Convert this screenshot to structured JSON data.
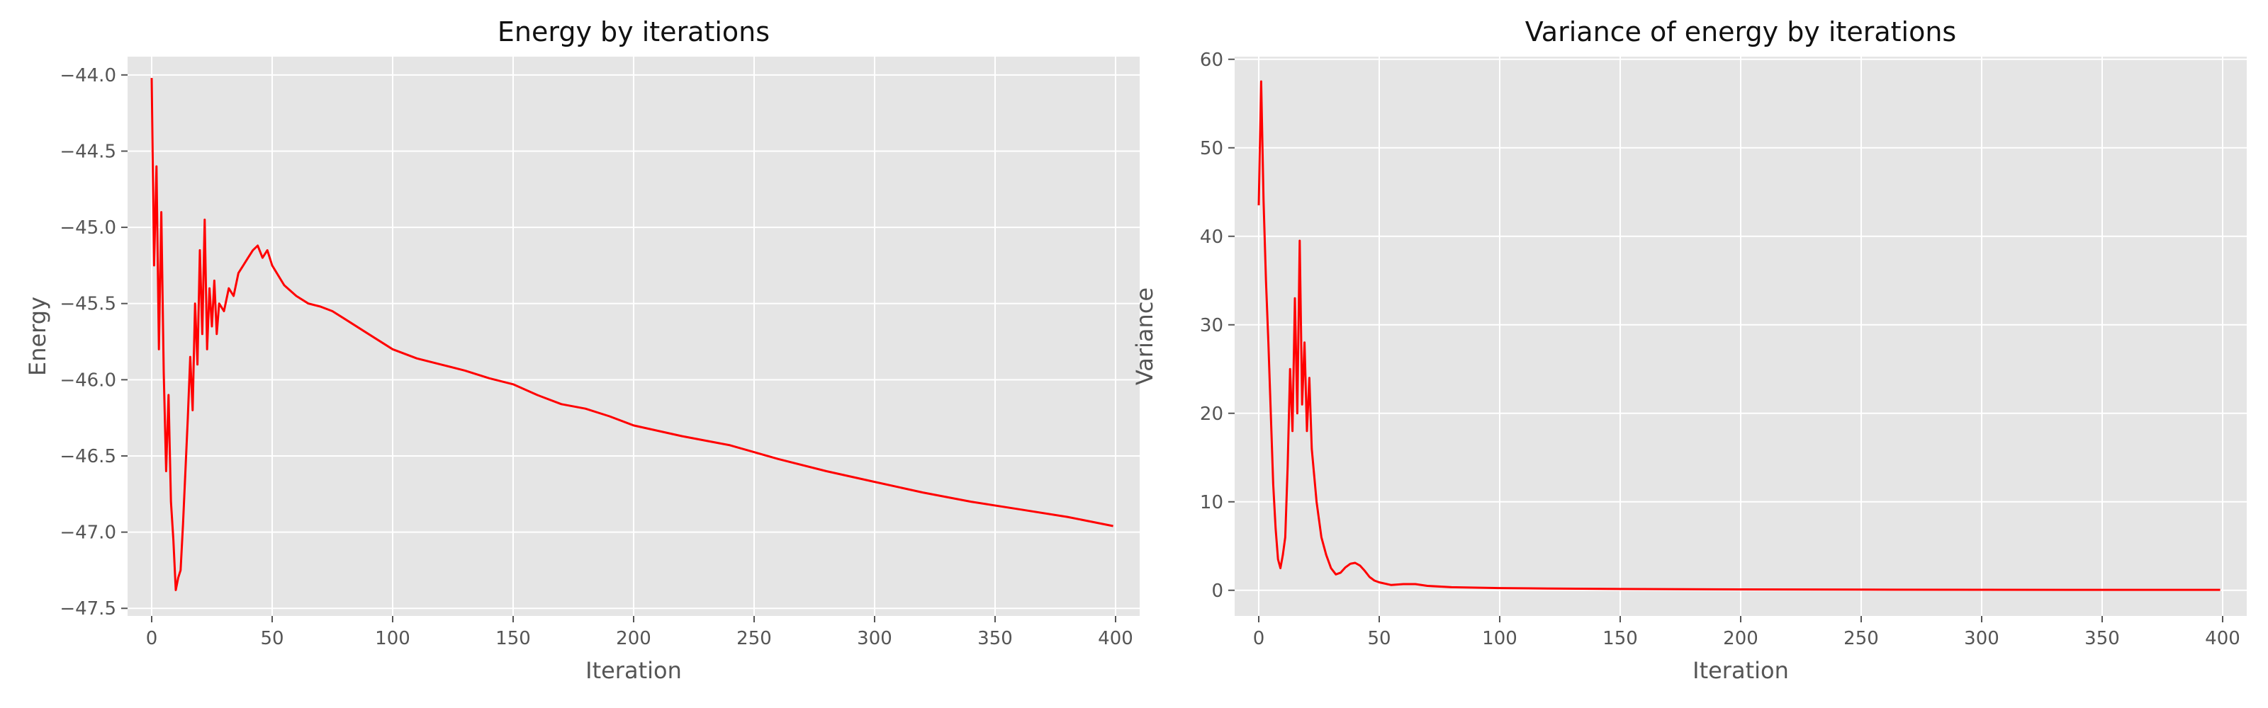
{
  "chart_data": [
    {
      "type": "line",
      "title": "Energy by iterations",
      "xlabel": "Iteration",
      "ylabel": "Energy",
      "xlim": [
        -10,
        410
      ],
      "ylim": [
        -47.55,
        -43.88
      ],
      "xticks": [
        0,
        50,
        100,
        150,
        200,
        250,
        300,
        350,
        400
      ],
      "xtick_labels": [
        "0",
        "50",
        "100",
        "150",
        "200",
        "250",
        "300",
        "350",
        "400"
      ],
      "yticks": [
        -47.5,
        -47.0,
        -46.5,
        -46.0,
        -45.5,
        -45.0,
        -44.5,
        -44.0
      ],
      "ytick_labels": [
        "−47.5",
        "−47.0",
        "−46.5",
        "−46.0",
        "−45.5",
        "−45.0",
        "−44.5",
        "−44.0"
      ],
      "grid": true,
      "series": [
        {
          "color": "#ff0000",
          "x": [
            0,
            1,
            2,
            3,
            4,
            5,
            6,
            7,
            8,
            9,
            10,
            11,
            12,
            13,
            14,
            15,
            16,
            17,
            18,
            19,
            20,
            21,
            22,
            23,
            24,
            25,
            26,
            27,
            28,
            30,
            32,
            34,
            36,
            38,
            40,
            42,
            44,
            46,
            48,
            50,
            55,
            60,
            65,
            70,
            75,
            80,
            90,
            100,
            110,
            120,
            130,
            140,
            150,
            160,
            170,
            180,
            190,
            200,
            220,
            240,
            260,
            280,
            300,
            320,
            340,
            360,
            380,
            399
          ],
          "y": [
            -44.02,
            -45.25,
            -44.6,
            -45.8,
            -44.9,
            -45.95,
            -46.6,
            -46.1,
            -46.8,
            -47.05,
            -47.38,
            -47.3,
            -47.25,
            -46.95,
            -46.6,
            -46.25,
            -45.85,
            -46.2,
            -45.5,
            -45.9,
            -45.15,
            -45.7,
            -44.95,
            -45.8,
            -45.4,
            -45.65,
            -45.35,
            -45.7,
            -45.5,
            -45.55,
            -45.4,
            -45.45,
            -45.3,
            -45.25,
            -45.2,
            -45.15,
            -45.12,
            -45.2,
            -45.15,
            -45.25,
            -45.38,
            -45.45,
            -45.5,
            -45.52,
            -45.55,
            -45.6,
            -45.7,
            -45.8,
            -45.86,
            -45.9,
            -45.94,
            -45.99,
            -46.03,
            -46.1,
            -46.16,
            -46.19,
            -46.24,
            -46.3,
            -46.37,
            -46.43,
            -46.52,
            -46.6,
            -46.67,
            -46.74,
            -46.8,
            -46.85,
            -46.9,
            -46.96
          ]
        }
      ]
    },
    {
      "type": "line",
      "title": "Variance of energy by iterations",
      "xlabel": "Iteration",
      "ylabel": "Variance",
      "xlim": [
        -10,
        410
      ],
      "ylim": [
        -2.9,
        60.3
      ],
      "xticks": [
        0,
        50,
        100,
        150,
        200,
        250,
        300,
        350,
        400
      ],
      "xtick_labels": [
        "0",
        "50",
        "100",
        "150",
        "200",
        "250",
        "300",
        "350",
        "400"
      ],
      "yticks": [
        0,
        10,
        20,
        30,
        40,
        50,
        60
      ],
      "ytick_labels": [
        "0",
        "10",
        "20",
        "30",
        "40",
        "50",
        "60"
      ],
      "grid": true,
      "series": [
        {
          "color": "#ff0000",
          "x": [
            0,
            1,
            2,
            3,
            4,
            5,
            6,
            7,
            8,
            9,
            10,
            11,
            12,
            13,
            14,
            15,
            16,
            17,
            18,
            19,
            20,
            21,
            22,
            23,
            24,
            25,
            26,
            27,
            28,
            30,
            32,
            34,
            36,
            38,
            40,
            42,
            44,
            46,
            48,
            50,
            55,
            60,
            65,
            70,
            80,
            90,
            100,
            120,
            150,
            200,
            250,
            300,
            350,
            399
          ],
          "y": [
            43.5,
            57.5,
            44,
            35,
            28,
            20,
            12,
            7,
            3.5,
            2.5,
            4,
            6,
            14,
            25,
            18,
            33,
            20,
            39.5,
            21,
            28,
            18,
            24,
            16,
            13,
            10,
            8,
            6,
            5,
            4,
            2.5,
            1.8,
            2.0,
            2.6,
            3.0,
            3.1,
            2.8,
            2.2,
            1.5,
            1.1,
            0.9,
            0.6,
            0.7,
            0.7,
            0.5,
            0.35,
            0.3,
            0.25,
            0.2,
            0.15,
            0.1,
            0.08,
            0.06,
            0.05,
            0.05
          ]
        }
      ]
    }
  ]
}
